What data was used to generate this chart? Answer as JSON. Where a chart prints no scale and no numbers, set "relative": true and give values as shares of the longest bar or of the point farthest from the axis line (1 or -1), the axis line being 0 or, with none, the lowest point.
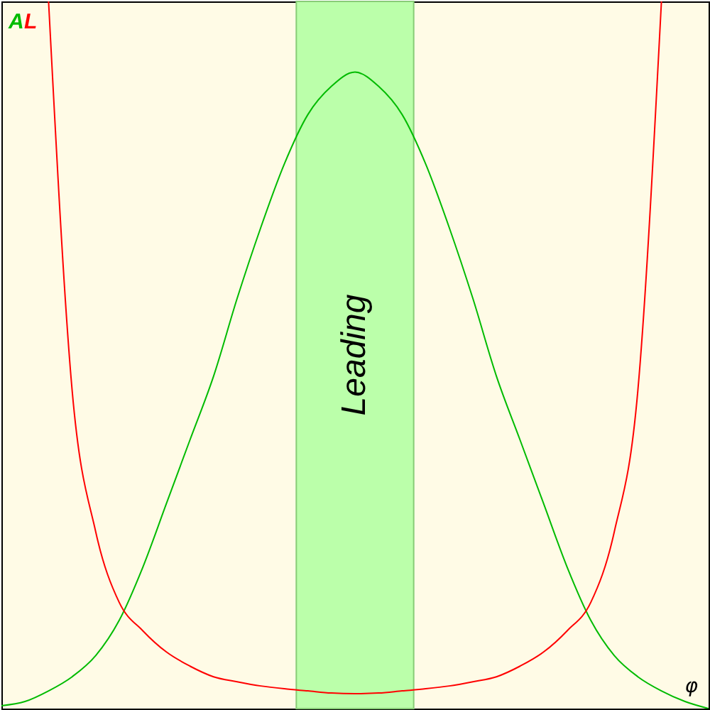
{
  "chart_data": {
    "type": "line",
    "relative": true,
    "xlabel": "φ",
    "categories": [
      null,
      null,
      null,
      null,
      null,
      null,
      null,
      null,
      null,
      null,
      null,
      null,
      null,
      null,
      null,
      null,
      null,
      null,
      null,
      null,
      null,
      null,
      null,
      null,
      null,
      null,
      null,
      null,
      null,
      null,
      null
    ],
    "series": [
      {
        "name": "A",
        "color": "#00bb00",
        "values": [
          0.004,
          0.01,
          0.025,
          0.045,
          0.075,
          0.125,
          0.2,
          0.29,
          0.38,
          0.47,
          0.58,
          0.68,
          0.77,
          0.84,
          0.88,
          0.9,
          0.88,
          0.84,
          0.77,
          0.68,
          0.58,
          0.47,
          0.38,
          0.29,
          0.2,
          0.125,
          0.075,
          0.045,
          0.025,
          0.01,
          0
        ]
      },
      {
        "name": "L",
        "color": "#ff0000",
        "values": [
          null,
          null,
          1,
          0.45,
          0.25,
          0.15,
          0.11,
          0.08,
          0.06,
          0.045,
          0.038,
          0.032,
          0.028,
          0.025,
          0.022,
          0.021,
          0.022,
          0.025,
          0.028,
          0.032,
          0.038,
          0.045,
          0.06,
          0.08,
          0.11,
          0.15,
          0.25,
          0.45,
          1,
          null,
          null
        ]
      }
    ],
    "annotations": [
      "Leading"
    ]
  }
}
